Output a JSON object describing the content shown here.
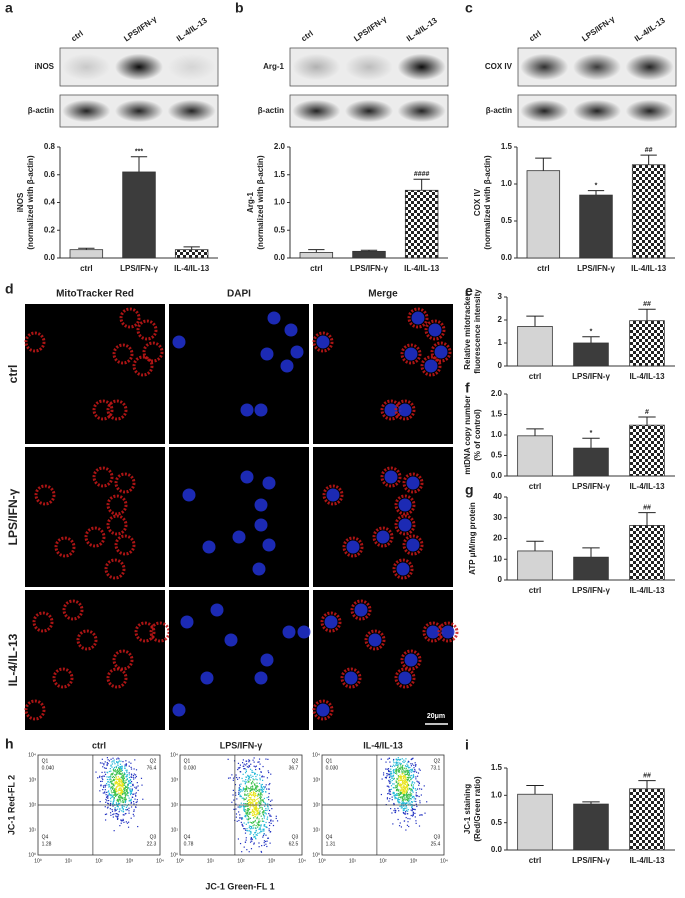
{
  "chart_data": [
    {
      "type": "bar",
      "ylabel": [
        "iNOS",
        "(normalized with β-actin)"
      ],
      "categories": [
        "ctrl",
        "LPS/IFN-γ",
        "IL-4/IL-13"
      ],
      "values": [
        0.06,
        0.62,
        0.06
      ],
      "errors": [
        0.01,
        0.11,
        0.02
      ],
      "significance": [
        null,
        "***",
        null
      ],
      "colors": [
        "#d4d4d4",
        "#3c3c3c",
        "#ffffff"
      ],
      "hatch": [
        false,
        false,
        true
      ],
      "ylim": [
        0,
        0.8
      ],
      "yticks": [
        {
          "value": 0,
          "label": "0.0"
        },
        0.2,
        0.4,
        0.6,
        0.8
      ]
    },
    {
      "type": "bar",
      "ylabel": [
        "Arg-1",
        "(normalized with β-actin)"
      ],
      "categories": [
        "ctrl",
        "LPS/IFN-γ",
        "IL-4/IL-13"
      ],
      "values": [
        0.1,
        0.12,
        1.22
      ],
      "errors": [
        0.05,
        0.02,
        0.2
      ],
      "significance": [
        null,
        null,
        "####"
      ],
      "colors": [
        "#d4d4d4",
        "#3c3c3c",
        "#ffffff"
      ],
      "hatch": [
        false,
        false,
        true
      ],
      "ylim": [
        0,
        2
      ],
      "yticks": [
        {
          "value": 0,
          "label": "0.0"
        },
        0.5,
        {
          "value": 1,
          "label": "1.0"
        },
        1.5,
        {
          "value": 2,
          "label": "2.0"
        }
      ]
    },
    {
      "type": "bar",
      "ylabel": [
        "COX IV",
        "(normalized with β-actin)"
      ],
      "categories": [
        "ctrl",
        "LPS/IFN-γ",
        "IL-4/IL-13"
      ],
      "values": [
        1.18,
        0.85,
        1.26
      ],
      "errors": [
        0.17,
        0.06,
        0.13
      ],
      "significance": [
        null,
        "*",
        "##"
      ],
      "colors": [
        "#d4d4d4",
        "#3c3c3c",
        "#ffffff"
      ],
      "hatch": [
        false,
        false,
        true
      ],
      "ylim": [
        0,
        1.5
      ],
      "yticks": [
        {
          "value": 0,
          "label": "0.0"
        },
        0.5,
        {
          "value": 1,
          "label": "1.0"
        },
        1.5
      ]
    },
    {
      "type": "bar",
      "panel_label": "e",
      "ylabel": [
        "Relative mitotracker",
        "fluorescence intensity"
      ],
      "categories": [
        "ctrl",
        "LPS/IFN-γ",
        "IL-4/IL-13"
      ],
      "values": [
        1.72,
        1.0,
        1.97
      ],
      "errors": [
        0.45,
        0.27,
        0.5
      ],
      "significance": [
        null,
        "*",
        "##"
      ],
      "colors": [
        "#d4d4d4",
        "#3c3c3c",
        "#ffffff"
      ],
      "hatch": [
        false,
        false,
        true
      ],
      "ylim": [
        0,
        3
      ],
      "yticks": [
        0,
        1,
        2,
        3
      ]
    },
    {
      "type": "bar",
      "panel_label": "f",
      "ylabel": [
        "mtDNA copy number",
        "(% of control)"
      ],
      "categories": [
        "ctrl",
        "LPS/IFN-γ",
        "IL-4/IL-13"
      ],
      "values": [
        0.98,
        0.68,
        1.24
      ],
      "errors": [
        0.17,
        0.24,
        0.2
      ],
      "significance": [
        null,
        "*",
        "#"
      ],
      "colors": [
        "#d4d4d4",
        "#3c3c3c",
        "#ffffff"
      ],
      "hatch": [
        false,
        false,
        true
      ],
      "ylim": [
        0,
        2
      ],
      "yticks": [
        {
          "value": 0,
          "label": "0.0"
        },
        0.5,
        {
          "value": 1,
          "label": "1.0"
        },
        1.5,
        {
          "value": 2,
          "label": "2.0"
        }
      ]
    },
    {
      "type": "bar",
      "panel_label": "g",
      "ylabel": [
        "ATP μM/mg protein"
      ],
      "categories": [
        "ctrl",
        "LPS/IFN-γ",
        "IL-4/IL-13"
      ],
      "values": [
        14,
        11,
        26.3
      ],
      "errors": [
        4.7,
        4.5,
        6.2
      ],
      "significance": [
        null,
        null,
        "##"
      ],
      "colors": [
        "#d4d4d4",
        "#3c3c3c",
        "#ffffff"
      ],
      "hatch": [
        false,
        false,
        true
      ],
      "ylim": [
        0,
        40
      ],
      "yticks": [
        0,
        10,
        20,
        30,
        40
      ]
    },
    {
      "type": "bar",
      "panel_label": "i",
      "ylabel": [
        "JC-1 staining",
        "(Red/Green ratio)"
      ],
      "categories": [
        "ctrl",
        "LPS/IFN-γ",
        "IL-4/IL-13"
      ],
      "values": [
        1.02,
        0.84,
        1.12
      ],
      "errors": [
        0.16,
        0.04,
        0.15
      ],
      "significance": [
        null,
        null,
        "##"
      ],
      "colors": [
        "#d4d4d4",
        "#3c3c3c",
        "#ffffff"
      ],
      "hatch": [
        false,
        false,
        true
      ],
      "ylim": [
        0,
        1.5
      ],
      "yticks": [
        {
          "value": 0,
          "label": "0.0"
        },
        0.5,
        {
          "value": 1,
          "label": "1.0"
        },
        1.5
      ]
    }
  ],
  "blots": [
    {
      "panel_label": "a",
      "lanes": [
        "ctrl",
        "LPS/IFN-γ",
        "IL-4/IL-13"
      ],
      "rows": [
        "iNOS",
        "β-actin"
      ]
    },
    {
      "panel_label": "b",
      "lanes": [
        "ctrl",
        "LPS/IFN-γ",
        "IL-4/IL-13"
      ],
      "rows": [
        "Arg-1",
        "β-actin"
      ]
    },
    {
      "panel_label": "c",
      "lanes": [
        "ctrl",
        "LPS/IFN-γ",
        "IL-4/IL-13"
      ],
      "rows": [
        "COX IV",
        "β-actin"
      ]
    }
  ],
  "microscopy": {
    "panel_label": "d",
    "columns": [
      "MitoTracker Red",
      "DAPI",
      "Merge"
    ],
    "rows": [
      "ctrl",
      "LPS/IFN-γ",
      "IL-4/IL-13"
    ],
    "scale_bar": "20μm"
  },
  "flow": {
    "panel_label": "h",
    "y_label": "JC-1 Red-FL 2",
    "x_label": "JC-1 Green-FL 1",
    "tick_labels": [
      "10⁰",
      "10¹",
      "10²",
      "10³",
      "10⁴"
    ],
    "panels": [
      {
        "title": "ctrl",
        "quadrants": [
          {
            "name": "Q1",
            "value": "0.040"
          },
          {
            "name": "Q2",
            "value": "76.4"
          },
          {
            "name": "Q3",
            "value": "22.3"
          },
          {
            "name": "Q4",
            "value": "1.28"
          }
        ]
      },
      {
        "title": "LPS/IFN-γ",
        "quadrants": [
          {
            "name": "Q1",
            "value": "0.030"
          },
          {
            "name": "Q2",
            "value": "36.7"
          },
          {
            "name": "Q3",
            "value": "62.5"
          },
          {
            "name": "Q4",
            "value": "0.78"
          }
        ]
      },
      {
        "title": "IL-4/IL-13",
        "quadrants": [
          {
            "name": "Q1",
            "value": "0.030"
          },
          {
            "name": "Q2",
            "value": "73.1"
          },
          {
            "name": "Q3",
            "value": "25.4"
          },
          {
            "name": "Q4",
            "value": "1.31"
          }
        ]
      }
    ]
  }
}
